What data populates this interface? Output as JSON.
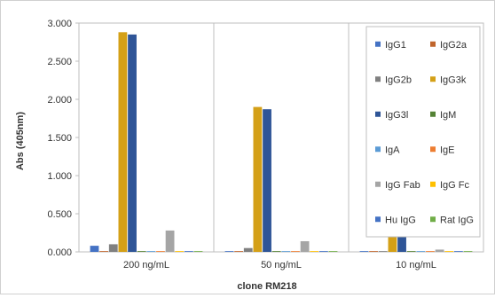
{
  "chart_data": {
    "type": "bar",
    "title": "",
    "xlabel": "clone RM218",
    "ylabel": "Abs (405nm)",
    "ylim": [
      0,
      3.0
    ],
    "yticks": [
      "0.000",
      "0.500",
      "1.000",
      "1.500",
      "2.000",
      "2.500",
      "3.000"
    ],
    "grid": "vertical separators between groups",
    "legend_position": "right",
    "categories": [
      "200 ng/mL",
      "50 ng/mL",
      "10 ng/mL"
    ],
    "series": [
      {
        "name": "IgG1",
        "color": "#4472c4",
        "values": [
          0.08,
          0.01,
          0.01
        ]
      },
      {
        "name": "IgG2a",
        "color": "#c0652c",
        "values": [
          0.01,
          0.01,
          0.01
        ]
      },
      {
        "name": "IgG2b",
        "color": "#808080",
        "values": [
          0.1,
          0.05,
          0.01
        ]
      },
      {
        "name": "IgG3k",
        "color": "#d4a017",
        "values": [
          2.88,
          1.9,
          0.64
        ]
      },
      {
        "name": "IgG3l",
        "color": "#2f5597",
        "values": [
          2.85,
          1.87,
          0.66
        ]
      },
      {
        "name": "IgM",
        "color": "#548235",
        "values": [
          0.01,
          0.01,
          0.01
        ]
      },
      {
        "name": "IgA",
        "color": "#5b9bd5",
        "values": [
          0.01,
          0.01,
          0.01
        ]
      },
      {
        "name": "IgE",
        "color": "#ed7d31",
        "values": [
          0.01,
          0.01,
          0.01
        ]
      },
      {
        "name": "IgG Fab",
        "color": "#a5a5a5",
        "values": [
          0.28,
          0.14,
          0.03
        ]
      },
      {
        "name": "IgG Fc",
        "color": "#ffc000",
        "values": [
          0.01,
          0.01,
          0.01
        ]
      },
      {
        "name": "Hu IgG",
        "color": "#4472c4",
        "values": [
          0.01,
          0.01,
          0.01
        ]
      },
      {
        "name": "Rat IgG",
        "color": "#70ad47",
        "values": [
          0.01,
          0.01,
          0.01
        ]
      }
    ]
  }
}
